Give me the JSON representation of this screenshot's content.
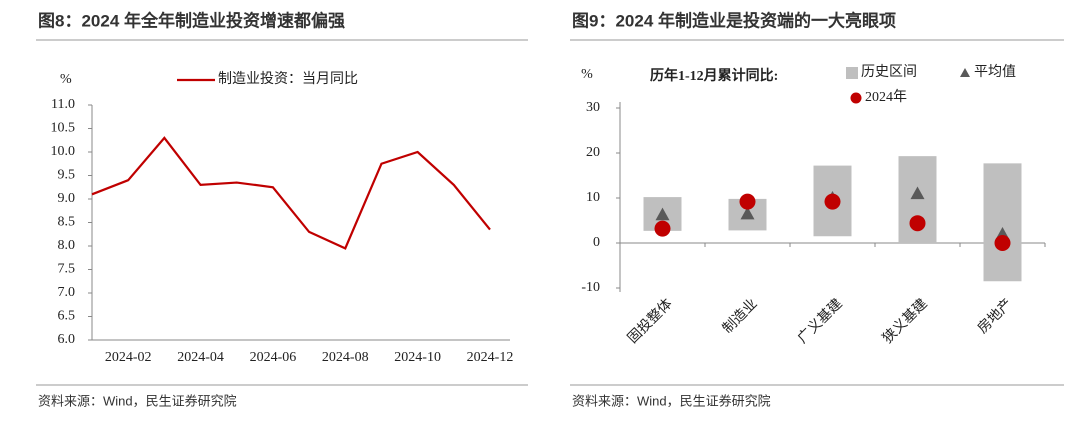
{
  "chart_data": [
    {
      "type": "line",
      "title": "图8：2024 年全年制造业投资增速都偏强",
      "y_unit": "%",
      "categories": [
        null,
        "2024-02",
        null,
        "2024-04",
        null,
        "2024-06",
        null,
        "2024-08",
        null,
        "2024-10",
        null,
        "2024-12"
      ],
      "series": [
        {
          "name": "制造业投资：当月同比",
          "color": "#c00000",
          "values": [
            9.1,
            9.4,
            10.3,
            9.3,
            9.35,
            9.25,
            8.3,
            7.95,
            9.75,
            10.0,
            9.3,
            8.35
          ]
        }
      ],
      "ylim": [
        6,
        11
      ],
      "yticks": [
        {
          "value": 6,
          "label": "6.0"
        },
        6.5,
        {
          "value": 7,
          "label": "7.0"
        },
        7.5,
        {
          "value": 8,
          "label": "8.0"
        },
        8.5,
        {
          "value": 9,
          "label": "9.0"
        },
        9.5,
        {
          "value": 10,
          "label": "10.0"
        },
        10.5,
        {
          "value": 11,
          "label": "11.0"
        }
      ],
      "source": "资料来源：Wind，民生证券研究院"
    },
    {
      "type": "range",
      "title": "图9：2024 年制造业是投资端的一大亮眼项",
      "y_unit": "%",
      "legend_title": "历年1-12月累计同比:",
      "categories": [
        "固投整体",
        "制造业",
        "广义基建",
        "狭义基建",
        "房地产"
      ],
      "series": [
        {
          "name": "历史区间",
          "color": "#bfbfbf",
          "low": [
            2.7,
            2.8,
            1.5,
            -0.2,
            -8.5
          ],
          "high": [
            10.2,
            9.8,
            17.2,
            19.3,
            17.7
          ]
        },
        {
          "name": "平均值",
          "color": "#595959",
          "marker": "triangle",
          "values": [
            6.3,
            6.5,
            10.0,
            11.0,
            2.0
          ]
        },
        {
          "name": "2024年",
          "color": "#c00000",
          "marker": "circle",
          "values": [
            3.2,
            9.2,
            9.2,
            4.4,
            0
          ]
        }
      ],
      "ylim": [
        -10,
        30
      ],
      "yticks": [
        -10,
        0,
        10,
        20,
        30
      ],
      "source": "资料来源：Wind，民生证券研究院"
    }
  ]
}
